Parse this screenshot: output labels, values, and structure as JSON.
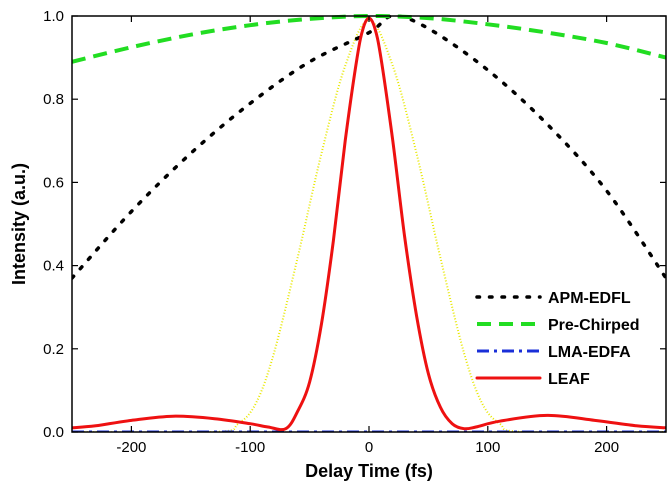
{
  "chart_data": {
    "type": "line",
    "xlabel": "Delay Time (fs)",
    "ylabel": "Intensity (a.u.)",
    "xlim": [
      -250,
      250
    ],
    "ylim": [
      0,
      1.0
    ],
    "xticks": [
      -200,
      -100,
      0,
      100,
      200
    ],
    "yticks": [
      0.0,
      0.2,
      0.4,
      0.6,
      0.8,
      1.0
    ],
    "xtick_labels": [
      "-200",
      "-100",
      "0",
      "100",
      "200"
    ],
    "ytick_labels": [
      "0.0",
      "0.2",
      "0.4",
      "0.6",
      "0.8",
      "1.0"
    ],
    "grid": false,
    "legend_position": "bottom-right",
    "series": [
      {
        "name": "APM-EDFL",
        "color": "#000000",
        "style": "dotted",
        "x": [
          -250,
          -200,
          -150,
          -100,
          -50,
          0,
          20,
          50,
          100,
          150,
          200,
          250
        ],
        "y": [
          0.37,
          0.53,
          0.67,
          0.79,
          0.89,
          0.96,
          1.0,
          0.97,
          0.87,
          0.74,
          0.58,
          0.37
        ]
      },
      {
        "name": "Pre-Chirped",
        "color": "#22dd22",
        "style": "dashed",
        "x": [
          -250,
          -200,
          -150,
          -100,
          -50,
          0,
          50,
          100,
          150,
          200,
          250
        ],
        "y": [
          0.89,
          0.925,
          0.955,
          0.978,
          0.993,
          1.0,
          0.995,
          0.98,
          0.96,
          0.935,
          0.9
        ]
      },
      {
        "name": "LMA-EDFA",
        "color": "#1a2fd8",
        "style": "dash-dot",
        "x": [
          -250,
          250
        ],
        "y": [
          0.0,
          0.0
        ]
      },
      {
        "name": "LEAF",
        "color": "#ee1111",
        "style": "solid",
        "x": [
          -250,
          -230,
          -200,
          -165,
          -130,
          -100,
          -85,
          -70,
          -60,
          -50,
          -40,
          -30,
          -20,
          -10,
          -5,
          0,
          5,
          10,
          20,
          30,
          40,
          50,
          60,
          70,
          80,
          90,
          110,
          150,
          190,
          225,
          250
        ],
        "y": [
          0.01,
          0.015,
          0.028,
          0.038,
          0.032,
          0.02,
          0.012,
          0.008,
          0.05,
          0.12,
          0.26,
          0.46,
          0.7,
          0.9,
          0.97,
          0.995,
          0.97,
          0.9,
          0.7,
          0.47,
          0.28,
          0.14,
          0.06,
          0.02,
          0.008,
          0.012,
          0.026,
          0.04,
          0.028,
          0.015,
          0.01
        ]
      },
      {
        "name": "",
        "color": "#e8e800",
        "style": "dotted-fine",
        "x": [
          -250,
          -130,
          -110,
          -95,
          -80,
          -60,
          -40,
          -20,
          0,
          20,
          40,
          60,
          80,
          95,
          110,
          130,
          250
        ],
        "y": [
          0.0,
          0.0,
          0.02,
          0.07,
          0.19,
          0.42,
          0.67,
          0.88,
          0.99,
          0.88,
          0.67,
          0.42,
          0.19,
          0.07,
          0.02,
          0.0,
          0.0
        ]
      }
    ]
  }
}
